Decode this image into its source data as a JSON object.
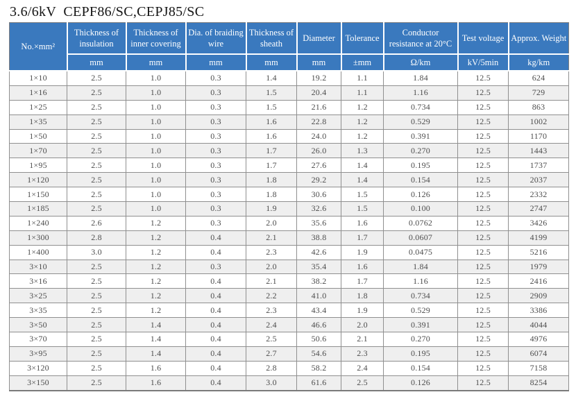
{
  "page_title": "3.6/6kV  CEPF86/SC,CEPJ85/SC",
  "colors": {
    "header_bg": "#3a79be",
    "header_text": "#ffffff",
    "row_stripe": "#efefef",
    "grid_border": "#8f8f8f",
    "body_text": "#4d4d4d"
  },
  "table": {
    "columns": [
      {
        "label": "No.×mm²",
        "unit": ""
      },
      {
        "label": "Thickness of insulation",
        "unit": "mm"
      },
      {
        "label": "Thickness of inner covering",
        "unit": "mm"
      },
      {
        "label": "Dia. of braiding wire",
        "unit": "mm"
      },
      {
        "label": "Thickness of sheath",
        "unit": "mm"
      },
      {
        "label": "Diameter",
        "unit": "mm"
      },
      {
        "label": "Tolerance",
        "unit": "±mm"
      },
      {
        "label": "Conductor resistance at 20°C",
        "unit": "Ω/km"
      },
      {
        "label": "Test voltage",
        "unit": "kV/5min"
      },
      {
        "label": "Approx. Weight",
        "unit": "kg/km"
      }
    ],
    "rows": [
      [
        "1×10",
        "2.5",
        "1.0",
        "0.3",
        "1.4",
        "19.2",
        "1.1",
        "1.84",
        "12.5",
        "624"
      ],
      [
        "1×16",
        "2.5",
        "1.0",
        "0.3",
        "1.5",
        "20.4",
        "1.1",
        "1.16",
        "12.5",
        "729"
      ],
      [
        "1×25",
        "2.5",
        "1.0",
        "0.3",
        "1.5",
        "21.6",
        "1.2",
        "0.734",
        "12.5",
        "863"
      ],
      [
        "1×35",
        "2.5",
        "1.0",
        "0.3",
        "1.6",
        "22.8",
        "1.2",
        "0.529",
        "12.5",
        "1002"
      ],
      [
        "1×50",
        "2.5",
        "1.0",
        "0.3",
        "1.6",
        "24.0",
        "1.2",
        "0.391",
        "12.5",
        "1170"
      ],
      [
        "1×70",
        "2.5",
        "1.0",
        "0.3",
        "1.7",
        "26.0",
        "1.3",
        "0.270",
        "12.5",
        "1443"
      ],
      [
        "1×95",
        "2.5",
        "1.0",
        "0.3",
        "1.7",
        "27.6",
        "1.4",
        "0.195",
        "12.5",
        "1737"
      ],
      [
        "1×120",
        "2.5",
        "1.0",
        "0.3",
        "1.8",
        "29.2",
        "1.4",
        "0.154",
        "12.5",
        "2037"
      ],
      [
        "1×150",
        "2.5",
        "1.0",
        "0.3",
        "1.8",
        "30.6",
        "1.5",
        "0.126",
        "12.5",
        "2332"
      ],
      [
        "1×185",
        "2.5",
        "1.0",
        "0.3",
        "1.9",
        "32.6",
        "1.5",
        "0.100",
        "12.5",
        "2747"
      ],
      [
        "1×240",
        "2.6",
        "1.2",
        "0.3",
        "2.0",
        "35.6",
        "1.6",
        "0.0762",
        "12.5",
        "3426"
      ],
      [
        "1×300",
        "2.8",
        "1.2",
        "0.4",
        "2.1",
        "38.8",
        "1.7",
        "0.0607",
        "12.5",
        "4199"
      ],
      [
        "1×400",
        "3.0",
        "1.2",
        "0.4",
        "2.3",
        "42.6",
        "1.9",
        "0.0475",
        "12.5",
        "5216"
      ],
      [
        "3×10",
        "2.5",
        "1.2",
        "0.3",
        "2.0",
        "35.4",
        "1.6",
        "1.84",
        "12.5",
        "1979"
      ],
      [
        "3×16",
        "2.5",
        "1.2",
        "0.4",
        "2.1",
        "38.2",
        "1.7",
        "1.16",
        "12.5",
        "2416"
      ],
      [
        "3×25",
        "2.5",
        "1.2",
        "0.4",
        "2.2",
        "41.0",
        "1.8",
        "0.734",
        "12.5",
        "2909"
      ],
      [
        "3×35",
        "2.5",
        "1.2",
        "0.4",
        "2.3",
        "43.4",
        "1.9",
        "0.529",
        "12.5",
        "3386"
      ],
      [
        "3×50",
        "2.5",
        "1.4",
        "0.4",
        "2.4",
        "46.6",
        "2.0",
        "0.391",
        "12.5",
        "4044"
      ],
      [
        "3×70",
        "2.5",
        "1.4",
        "0.4",
        "2.5",
        "50.6",
        "2.1",
        "0.270",
        "12.5",
        "4976"
      ],
      [
        "3×95",
        "2.5",
        "1.4",
        "0.4",
        "2.7",
        "54.6",
        "2.3",
        "0.195",
        "12.5",
        "6074"
      ],
      [
        "3×120",
        "2.5",
        "1.6",
        "0.4",
        "2.8",
        "58.2",
        "2.4",
        "0.154",
        "12.5",
        "7158"
      ],
      [
        "3×150",
        "2.5",
        "1.6",
        "0.4",
        "3.0",
        "61.6",
        "2.5",
        "0.126",
        "12.5",
        "8254"
      ]
    ]
  }
}
